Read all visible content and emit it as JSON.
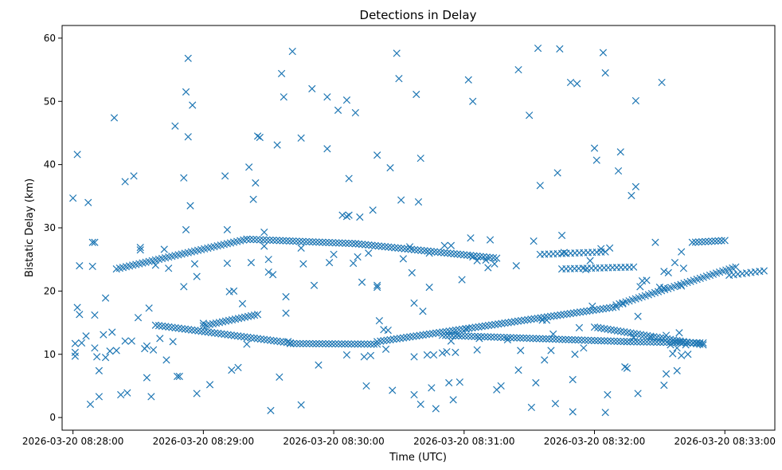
{
  "chart_data": {
    "type": "scatter",
    "title": "Detections in Delay",
    "xlabel": "Time (UTC)",
    "ylabel": "Bistatic Delay (km)",
    "x_unit": "seconds after 2026-03-20 08:28:00",
    "xlim": [
      -5,
      323
    ],
    "ylim": [
      -2,
      62
    ],
    "x_ticks": [
      {
        "value": 0,
        "label": "2026-03-20 08:28:00"
      },
      {
        "value": 60,
        "label": "2026-03-20 08:29:00"
      },
      {
        "value": 120,
        "label": "2026-03-20 08:30:00"
      },
      {
        "value": 180,
        "label": "2026-03-20 08:31:00"
      },
      {
        "value": 240,
        "label": "2026-03-20 08:32:00"
      },
      {
        "value": 300,
        "label": "2026-03-20 08:33:00"
      }
    ],
    "y_ticks": [
      0,
      10,
      20,
      30,
      40,
      50,
      60
    ],
    "marker": "x",
    "color": "#1f77b4",
    "grid": false,
    "legend": "none",
    "series": [
      {
        "tracks": [
          {
            "x": [
              20,
              80
            ],
            "y": [
              23.5,
              28.2
            ],
            "step": 1.5,
            "desc": "rising to ~28 km"
          },
          {
            "x": [
              80,
              130
            ],
            "y": [
              28.2,
              27.5
            ],
            "step": 1.5
          },
          {
            "x": [
              130,
              195
            ],
            "y": [
              27.5,
              25.2
            ],
            "step": 1.5
          },
          {
            "x": [
              60,
              85
            ],
            "y": [
              14.5,
              16.3
            ],
            "step": 1.5
          },
          {
            "x": [
              38,
              100
            ],
            "y": [
              14.6,
              11.8
            ],
            "step": 1.5
          },
          {
            "x": [
              100,
              140
            ],
            "y": [
              11.7,
              11.6
            ],
            "step": 1.5
          },
          {
            "x": [
              140,
              250
            ],
            "y": [
              12.0,
              17.5
            ],
            "step": 1.5
          },
          {
            "x": [
              250,
              305
            ],
            "y": [
              17.8,
              23.8
            ],
            "step": 1.5
          },
          {
            "x": [
              170,
              255
            ],
            "y": [
              13.0,
              12.0
            ],
            "step": 1.5
          },
          {
            "x": [
              255,
              290
            ],
            "y": [
              12.0,
              11.8
            ],
            "step": 1.5
          },
          {
            "x": [
              215,
              245
            ],
            "y": [
              25.8,
              26.2
            ],
            "step": 2.0
          },
          {
            "x": [
              225,
              258
            ],
            "y": [
              23.5,
              23.8
            ],
            "step": 2.0
          },
          {
            "x": [
              285,
              300
            ],
            "y": [
              27.7,
              28.0
            ],
            "step": 1.5
          },
          {
            "x": [
              302,
              318
            ],
            "y": [
              22.5,
              23.2
            ],
            "step": 2.0
          },
          {
            "x": [
              240,
              290
            ],
            "y": [
              14.3,
              11.5
            ],
            "step": 1.5
          }
        ],
        "points": [
          [
            0,
            34.7
          ],
          [
            2,
            41.6
          ],
          [
            1,
            9.7
          ],
          [
            1,
            10.3
          ],
          [
            1,
            11.7
          ],
          [
            2,
            17.4
          ],
          [
            3,
            16.3
          ],
          [
            3,
            24.0
          ],
          [
            4,
            11.8
          ],
          [
            6,
            12.9
          ],
          [
            7,
            34.0
          ],
          [
            8,
            2.1
          ],
          [
            9,
            23.9
          ],
          [
            9,
            27.7
          ],
          [
            10,
            27.7
          ],
          [
            10,
            16.2
          ],
          [
            10,
            11.0
          ],
          [
            11,
            9.6
          ],
          [
            12,
            7.4
          ],
          [
            12,
            3.3
          ],
          [
            14,
            13.1
          ],
          [
            15,
            9.5
          ],
          [
            15,
            18.9
          ],
          [
            17,
            10.5
          ],
          [
            18,
            13.5
          ],
          [
            19,
            47.4
          ],
          [
            20,
            10.6
          ],
          [
            22,
            3.6
          ],
          [
            24,
            37.3
          ],
          [
            24,
            12.1
          ],
          [
            25,
            3.9
          ],
          [
            27,
            12.1
          ],
          [
            28,
            38.2
          ],
          [
            30,
            15.8
          ],
          [
            31,
            26.5
          ],
          [
            31,
            26.9
          ],
          [
            33,
            10.9
          ],
          [
            34,
            11.3
          ],
          [
            34,
            6.3
          ],
          [
            35,
            17.3
          ],
          [
            36,
            3.3
          ],
          [
            37,
            10.7
          ],
          [
            38,
            24.1
          ],
          [
            40,
            12.5
          ],
          [
            42,
            26.6
          ],
          [
            43,
            9.1
          ],
          [
            44,
            23.6
          ],
          [
            46,
            12.0
          ],
          [
            47,
            46.1
          ],
          [
            48,
            6.5
          ],
          [
            49,
            6.5
          ],
          [
            51,
            37.9
          ],
          [
            51,
            20.7
          ],
          [
            52,
            51.5
          ],
          [
            52,
            29.7
          ],
          [
            53,
            56.8
          ],
          [
            53,
            44.4
          ],
          [
            54,
            33.5
          ],
          [
            55,
            49.4
          ],
          [
            56,
            24.3
          ],
          [
            57,
            22.3
          ],
          [
            57,
            3.8
          ],
          [
            60,
            14.9
          ],
          [
            63,
            5.2
          ],
          [
            70,
            38.2
          ],
          [
            71,
            29.7
          ],
          [
            71,
            24.4
          ],
          [
            72,
            19.9
          ],
          [
            73,
            7.5
          ],
          [
            74,
            20.0
          ],
          [
            76,
            7.9
          ],
          [
            78,
            18.0
          ],
          [
            80,
            11.6
          ],
          [
            81,
            39.6
          ],
          [
            82,
            24.5
          ],
          [
            83,
            34.5
          ],
          [
            84,
            37.1
          ],
          [
            85,
            44.5
          ],
          [
            86,
            44.3
          ],
          [
            88,
            29.3
          ],
          [
            88,
            27.1
          ],
          [
            90,
            25.0
          ],
          [
            90,
            23.0
          ],
          [
            91,
            1.1
          ],
          [
            92,
            22.6
          ],
          [
            94,
            43.1
          ],
          [
            95,
            6.4
          ],
          [
            96,
            54.4
          ],
          [
            97,
            50.7
          ],
          [
            98,
            19.1
          ],
          [
            98,
            16.5
          ],
          [
            99,
            12.0
          ],
          [
            101,
            57.9
          ],
          [
            105,
            44.2
          ],
          [
            105,
            26.8
          ],
          [
            105,
            2.0
          ],
          [
            106,
            24.3
          ],
          [
            110,
            52.0
          ],
          [
            111,
            20.9
          ],
          [
            113,
            8.3
          ],
          [
            117,
            42.5
          ],
          [
            117,
            50.7
          ],
          [
            118,
            24.5
          ],
          [
            120,
            25.8
          ],
          [
            122,
            48.6
          ],
          [
            124,
            32.0
          ],
          [
            126,
            9.9
          ],
          [
            126,
            31.8
          ],
          [
            126,
            50.2
          ],
          [
            127,
            37.8
          ],
          [
            127,
            32.0
          ],
          [
            129,
            24.4
          ],
          [
            130,
            48.2
          ],
          [
            131,
            25.4
          ],
          [
            132,
            31.7
          ],
          [
            133,
            21.4
          ],
          [
            134,
            9.6
          ],
          [
            135,
            5.0
          ],
          [
            136,
            26.0
          ],
          [
            137,
            9.8
          ],
          [
            138,
            32.8
          ],
          [
            140,
            41.5
          ],
          [
            140,
            20.9
          ],
          [
            140,
            20.6
          ],
          [
            141,
            15.3
          ],
          [
            143,
            13.9
          ],
          [
            144,
            10.8
          ],
          [
            145,
            13.8
          ],
          [
            146,
            39.5
          ],
          [
            147,
            4.3
          ],
          [
            149,
            57.6
          ],
          [
            150,
            53.6
          ],
          [
            151,
            34.4
          ],
          [
            152,
            25.1
          ],
          [
            155,
            27.0
          ],
          [
            156,
            22.9
          ],
          [
            157,
            9.6
          ],
          [
            157,
            18.1
          ],
          [
            157,
            3.6
          ],
          [
            158,
            51.1
          ],
          [
            159,
            34.1
          ],
          [
            160,
            2.1
          ],
          [
            160,
            41.0
          ],
          [
            161,
            16.8
          ],
          [
            163,
            9.9
          ],
          [
            164,
            26.0
          ],
          [
            164,
            20.6
          ],
          [
            165,
            4.7
          ],
          [
            166,
            9.9
          ],
          [
            167,
            1.4
          ],
          [
            170,
            10.2
          ],
          [
            171,
            27.2
          ],
          [
            172,
            10.4
          ],
          [
            173,
            5.5
          ],
          [
            174,
            27.2
          ],
          [
            174,
            12.1
          ],
          [
            175,
            2.8
          ],
          [
            176,
            10.3
          ],
          [
            177,
            13.2
          ],
          [
            178,
            5.6
          ],
          [
            179,
            21.8
          ],
          [
            181,
            14.0
          ],
          [
            182,
            53.4
          ],
          [
            183,
            28.4
          ],
          [
            184,
            25.4
          ],
          [
            184,
            50.0
          ],
          [
            186,
            24.8
          ],
          [
            186,
            10.7
          ],
          [
            187,
            12.5
          ],
          [
            190,
            24.9
          ],
          [
            191,
            23.7
          ],
          [
            192,
            28.1
          ],
          [
            194,
            24.3
          ],
          [
            195,
            4.4
          ],
          [
            197,
            5.0
          ],
          [
            200,
            12.3
          ],
          [
            204,
            24.0
          ],
          [
            205,
            55.0
          ],
          [
            205,
            7.5
          ],
          [
            206,
            10.6
          ],
          [
            210,
            47.8
          ],
          [
            211,
            1.6
          ],
          [
            212,
            27.9
          ],
          [
            213,
            5.5
          ],
          [
            214,
            58.4
          ],
          [
            215,
            36.7
          ],
          [
            216,
            15.4
          ],
          [
            217,
            9.1
          ],
          [
            218,
            15.4
          ],
          [
            220,
            10.6
          ],
          [
            221,
            13.2
          ],
          [
            222,
            2.2
          ],
          [
            223,
            38.7
          ],
          [
            224,
            58.3
          ],
          [
            225,
            28.8
          ],
          [
            226,
            26.1
          ],
          [
            229,
            53.0
          ],
          [
            230,
            0.9
          ],
          [
            230,
            6.0
          ],
          [
            231,
            10.0
          ],
          [
            232,
            52.8
          ],
          [
            233,
            14.2
          ],
          [
            235,
            11.0
          ],
          [
            236,
            23.4
          ],
          [
            238,
            24.8
          ],
          [
            239,
            17.6
          ],
          [
            240,
            42.6
          ],
          [
            241,
            40.7
          ],
          [
            243,
            26.7
          ],
          [
            244,
            57.7
          ],
          [
            245,
            0.8
          ],
          [
            245,
            54.5
          ],
          [
            246,
            3.6
          ],
          [
            247,
            26.8
          ],
          [
            251,
            39.0
          ],
          [
            252,
            42.0
          ],
          [
            253,
            18.0
          ],
          [
            254,
            8.0
          ],
          [
            255,
            7.8
          ],
          [
            257,
            35.1
          ],
          [
            258,
            12.7
          ],
          [
            259,
            36.5
          ],
          [
            259,
            50.1
          ],
          [
            260,
            16.0
          ],
          [
            260,
            3.8
          ],
          [
            261,
            20.7
          ],
          [
            262,
            21.6
          ],
          [
            264,
            21.7
          ],
          [
            266,
            12.7
          ],
          [
            268,
            27.7
          ],
          [
            270,
            20.6
          ],
          [
            271,
            53.0
          ],
          [
            272,
            23.1
          ],
          [
            272,
            20.5
          ],
          [
            272,
            5.1
          ],
          [
            273,
            13.0
          ],
          [
            273,
            6.9
          ],
          [
            274,
            22.9
          ],
          [
            276,
            10.1
          ],
          [
            277,
            24.5
          ],
          [
            277,
            12.0
          ],
          [
            278,
            7.4
          ],
          [
            279,
            13.4
          ],
          [
            280,
            20.8
          ],
          [
            280,
            26.2
          ],
          [
            281,
            23.6
          ],
          [
            283,
            10.0
          ],
          [
            275,
            11.5
          ],
          [
            278,
            11.0
          ],
          [
            280,
            9.8
          ],
          [
            282,
            11.5
          ]
        ]
      }
    ]
  }
}
